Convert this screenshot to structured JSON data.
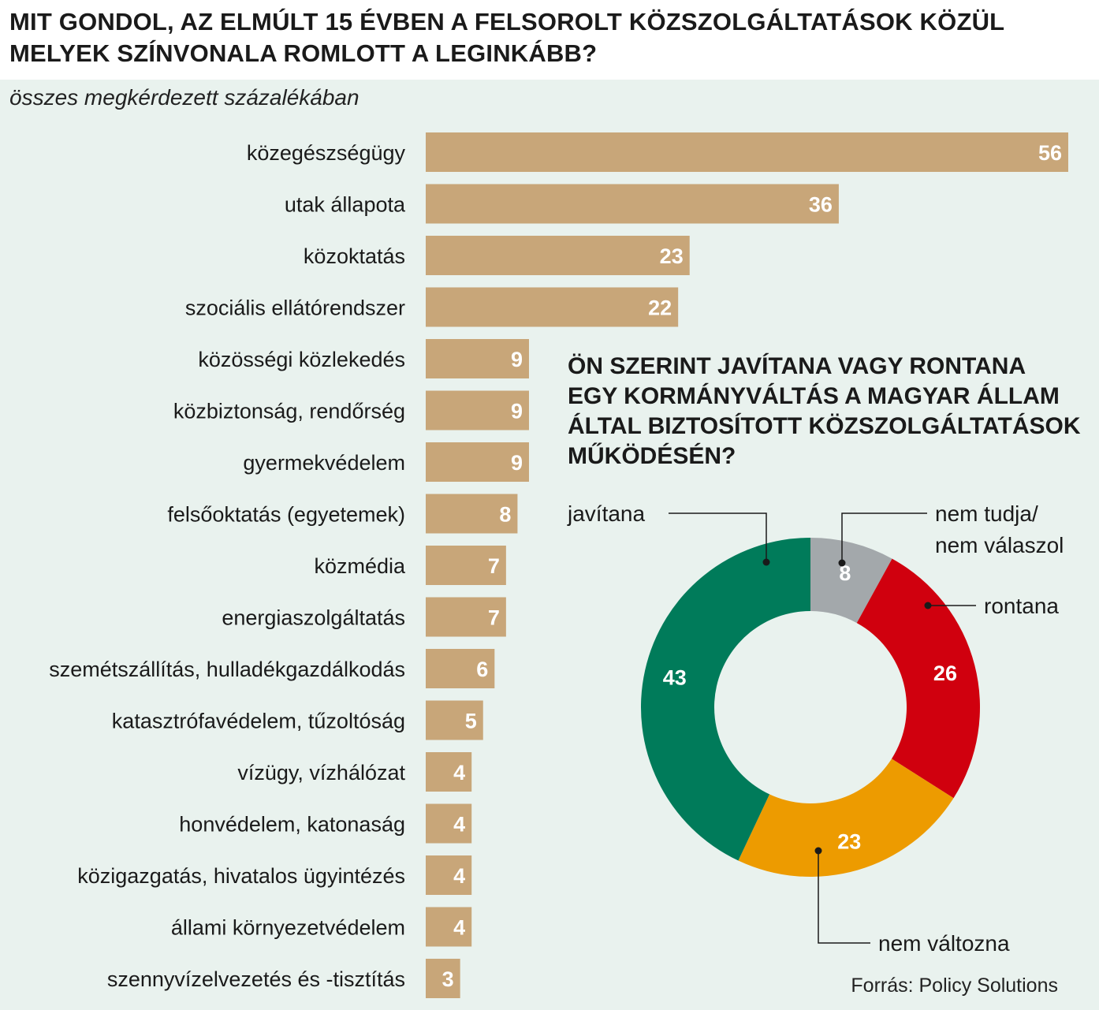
{
  "title": "MIT GONDOL, AZ ELMÚLT 15 ÉVBEN A FELSOROLT KÖZSZOLGÁLTATÁSOK KÖZÜL\nMELYEK SZÍNVONALA ROMLOTT A LEGINKÁBB?",
  "subtitle": "összes megkérdezett százalékában",
  "source": "Forrás: Policy Solutions",
  "colors": {
    "bar": "#c8a679",
    "javitana": "#007b5a",
    "rontana": "#d0000e",
    "nem_valtozna": "#ed9b00",
    "nem_tudja": "#a3a8ab"
  },
  "chart_data": [
    {
      "type": "bar",
      "orientation": "horizontal",
      "categories": [
        "közegészségügy",
        "utak állapota",
        "közoktatás",
        "szociális ellátórendszer",
        "közösségi közlekedés",
        "közbiztonság, rendőrség",
        "gyermekvédelem",
        "felsőoktatás (egyetemek)",
        "közmédia",
        "energiaszolgáltatás",
        "szemétszállítás, hulladékgazdálkodás",
        "katasztrófavédelem, tűzoltóság",
        "vízügy, vízhálózat",
        "honvédelem, katonaság",
        "közigazgatás, hivatalos ügyintézés",
        "állami környezetvédelem",
        "szennyvízelvezetés és -tisztítás"
      ],
      "values": [
        56,
        36,
        23,
        22,
        9,
        9,
        9,
        8,
        7,
        7,
        6,
        5,
        4,
        4,
        4,
        4,
        3
      ],
      "unit": "%"
    },
    {
      "type": "pie",
      "style": "donut",
      "title": "ÖN SZERINT JAVÍTANA VAGY RONTANA\nEGY KORMÁNYVÁLTÁS A MAGYAR ÁLLAM\nÁLTAL BIZTOSÍTOTT KÖZSZOLGÁLTATÁSOK\nMŰKÖDÉSÉN?",
      "slices": [
        {
          "label": "nem tudja/\nnem válaszol",
          "value": 8,
          "color": "#a3a8ab"
        },
        {
          "label": "rontana",
          "value": 26,
          "color": "#d0000e"
        },
        {
          "label": "nem változna",
          "value": 23,
          "color": "#ed9b00"
        },
        {
          "label": "javítana",
          "value": 43,
          "color": "#007b5a"
        }
      ]
    }
  ]
}
